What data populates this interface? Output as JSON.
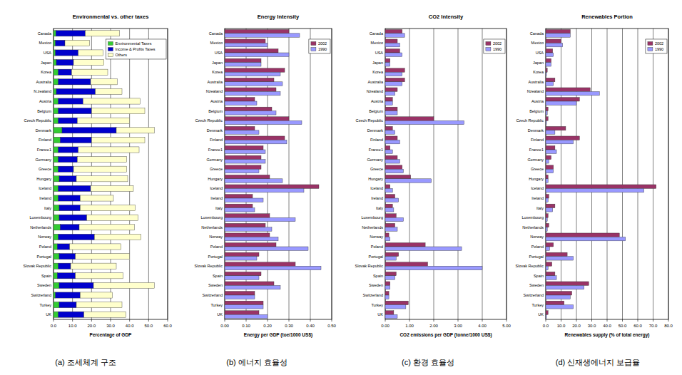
{
  "chart_data": [
    {
      "type": "bar",
      "orientation": "horizontal",
      "stacked": true,
      "grid": true,
      "legend": "upper right",
      "title": "Environmental vs. other taxes",
      "x_label": "Percentage of GDP",
      "caption": "(a) 조세체계 구조",
      "categories": [
        "Canada",
        "Mexico",
        "USA",
        "Japan",
        "Korea",
        "Australia",
        "N.zealand",
        "Austria",
        "Belgium",
        "Czech Republic",
        "Denmark",
        "Finland",
        "France1",
        "Germany",
        "Greece",
        "Hungary",
        "Iceland",
        "Ireland",
        "Italy",
        "Luxembourg",
        "Netherlands",
        "Norway",
        "Poland",
        "Portugal",
        "Slovak Republic",
        "Spain",
        "Sweden",
        "Switzerland",
        "Turkey",
        "UK"
      ],
      "series": [
        {
          "name": "Environmental Taxes",
          "color": "#33cc33",
          "values": [
            1.2,
            1.0,
            1.0,
            1.5,
            2.5,
            2.5,
            1.5,
            2.5,
            2.5,
            2.5,
            4.5,
            3.5,
            2.5,
            2.5,
            2.5,
            3,
            2.5,
            2.5,
            3,
            3,
            3.5,
            2.5,
            2,
            3,
            2.5,
            2,
            3,
            1,
            3,
            2.5
          ]
        },
        {
          "name": "Income & Profits Taxes",
          "color": "#0000cc",
          "values": [
            15.5,
            5,
            12,
            9,
            7,
            17,
            20.5,
            13,
            17.5,
            10,
            28.5,
            16.5,
            10.5,
            10,
            8,
            9,
            17,
            11.5,
            11,
            14.5,
            10,
            19,
            6.5,
            8.5,
            6.5,
            9.5,
            18,
            13,
            9,
            13.5
          ]
        },
        {
          "name": "Others",
          "color": "#ffffcc",
          "values": [
            18,
            13,
            13,
            16,
            19,
            14,
            14,
            30,
            28,
            27.5,
            20,
            28,
            32,
            26,
            28,
            27,
            22.5,
            17.5,
            29,
            27,
            29,
            24.5,
            27,
            28.5,
            24,
            25,
            32,
            17,
            24,
            22
          ]
        }
      ],
      "xlim": [
        0,
        60
      ],
      "xticks": [
        {
          "value": 0,
          "label": "0.0"
        },
        {
          "value": 10,
          "label": "10.0"
        },
        {
          "value": 20,
          "label": "20.0"
        },
        {
          "value": 30,
          "label": "30.0"
        },
        {
          "value": 40,
          "label": "40.0"
        },
        {
          "value": 50,
          "label": "50.0"
        },
        {
          "value": 60,
          "label": "60.0"
        }
      ]
    },
    {
      "type": "bar",
      "orientation": "horizontal",
      "grid": true,
      "legend": "upper right",
      "title": "Energy Intensity",
      "x_label": "Energy per GDP (toe/1000 US$)",
      "caption": "(b) 에너지 효율성",
      "categories": [
        "Canada",
        "Mexico",
        "USA",
        "Japan",
        "Korea",
        "Australia",
        "Nzealand",
        "Austria",
        "Belgium",
        "Czech Republic",
        "Denmark",
        "Finland",
        "France1",
        "Germany",
        "Greece",
        "Hungary",
        "Iceland",
        "Ireland",
        "Italy",
        "Luxembourg",
        "Netherlands",
        "Norway",
        "Poland",
        "Portugal",
        "Slovak Republic",
        "Spain",
        "Sweden",
        "Switzerland",
        "Turkey",
        "UK"
      ],
      "series": [
        {
          "name": "2002",
          "color": "#993366",
          "values": [
            0.3,
            0.19,
            0.25,
            0.17,
            0.28,
            0.23,
            0.24,
            0.14,
            0.22,
            0.3,
            0.14,
            0.28,
            0.18,
            0.17,
            0.17,
            0.21,
            0.44,
            0.13,
            0.13,
            0.21,
            0.19,
            0.21,
            0.24,
            0.16,
            0.33,
            0.17,
            0.23,
            0.14,
            0.18,
            0.16
          ]
        },
        {
          "name": "1990",
          "color": "#9999ff",
          "values": [
            0.35,
            0.2,
            0.3,
            0.17,
            0.26,
            0.27,
            0.26,
            0.15,
            0.24,
            0.36,
            0.16,
            0.29,
            0.19,
            0.19,
            0.16,
            0.27,
            0.37,
            0.18,
            0.14,
            0.33,
            0.22,
            0.25,
            0.39,
            0.15,
            0.45,
            0.16,
            0.26,
            0.14,
            0.18,
            0.2
          ]
        }
      ],
      "xlim": [
        0,
        0.5
      ],
      "xticks": [
        {
          "value": 0,
          "label": "0.00"
        },
        {
          "value": 0.1,
          "label": "0.10"
        },
        {
          "value": 0.2,
          "label": "0.20"
        },
        {
          "value": 0.3,
          "label": "0.30"
        },
        {
          "value": 0.4,
          "label": "0.40"
        },
        {
          "value": 0.5,
          "label": "0.50"
        }
      ]
    },
    {
      "type": "bar",
      "orientation": "horizontal",
      "grid": true,
      "legend": "upper right",
      "title": "CO2 Intensity",
      "x_label": "CO2 emissions per GDP (tonne/1000 US$)",
      "caption": "(c) 환경 효율성",
      "categories": [
        "Canada",
        "Mexico",
        "USA",
        "Japan",
        "Korea",
        "Australia",
        "Nzealand",
        "Austria",
        "Belgium",
        "Czech Republic",
        "Denmark",
        "Finland",
        "France1",
        "Germany",
        "Greece",
        "Hungary",
        "Iceland",
        "Ireland",
        "Italy",
        "Luxembourg",
        "Netherlands",
        "Norway",
        "Poland",
        "Portugal",
        "Slovak Republic",
        "Spain",
        "Sweden",
        "Switzerland",
        "Turkey",
        "UK"
      ],
      "series": [
        {
          "name": "2002",
          "color": "#993366",
          "values": [
            0.7,
            0.5,
            0.6,
            0.2,
            0.8,
            0.8,
            0.5,
            0.3,
            0.5,
            2.0,
            0.3,
            0.5,
            0.2,
            0.5,
            0.7,
            1.05,
            0.2,
            0.4,
            0.3,
            0.45,
            0.4,
            0.15,
            1.65,
            0.55,
            1.75,
            0.45,
            0.2,
            0.15,
            0.95,
            0.35
          ]
        },
        {
          "name": "1990",
          "color": "#9999ff",
          "values": [
            0.8,
            0.6,
            0.7,
            0.2,
            0.7,
            0.7,
            0.4,
            0.3,
            0.5,
            3.25,
            0.4,
            0.6,
            0.3,
            0.6,
            0.75,
            1.9,
            0.3,
            0.55,
            0.35,
            0.75,
            0.5,
            0.2,
            3.15,
            0.45,
            4.0,
            0.4,
            0.2,
            0.15,
            0.85,
            0.5
          ]
        }
      ],
      "xlim": [
        0,
        5
      ],
      "xticks": [
        {
          "value": 0,
          "label": "0.00"
        },
        {
          "value": 1,
          "label": "1.00"
        },
        {
          "value": 2,
          "label": "2.00"
        },
        {
          "value": 3,
          "label": "3.00"
        },
        {
          "value": 4,
          "label": "4.00"
        },
        {
          "value": 5,
          "label": "5.00"
        }
      ]
    },
    {
      "type": "bar",
      "orientation": "horizontal",
      "grid": true,
      "legend": "upper right",
      "title": "Renewables Portion",
      "x_label": "Renewables supply (% of total energy)",
      "caption": "(d) 신재생에너지 보급율",
      "categories": [
        "Canada",
        "Mexico",
        "USA",
        "Japan",
        "Korea",
        "Australia",
        "Nzealand",
        "Austria",
        "Belgium",
        "Czech Republic",
        "Denmark",
        "Finland",
        "France1",
        "Germany",
        "Greece",
        "Hungary",
        "Iceland",
        "Ireland",
        "Italy",
        "Luxembourg",
        "Netherlands",
        "Norway",
        "Poland",
        "Portugal",
        "Slovak Republic",
        "Spain",
        "Sweden",
        "Switzerland",
        "Turkey",
        "UK"
      ],
      "series": [
        {
          "name": "2002",
          "color": "#993366",
          "values": [
            16,
            10,
            4.5,
            3.5,
            1,
            6,
            29,
            22,
            1.5,
            1.5,
            13,
            22,
            6,
            3.5,
            5,
            1.5,
            72,
            2,
            6,
            1.5,
            2,
            48,
            5,
            14,
            4,
            6,
            28,
            17,
            12,
            1.5
          ]
        },
        {
          "name": "1990",
          "color": "#9999ff",
          "values": [
            16,
            11,
            5,
            3.5,
            0.5,
            5,
            35,
            20,
            1,
            0.5,
            6,
            18,
            7,
            2,
            5,
            1.5,
            64,
            1.5,
            4.5,
            1,
            1,
            52,
            2.5,
            18,
            1.5,
            7,
            25,
            16,
            18,
            0.5
          ]
        }
      ],
      "xlim": [
        0,
        80
      ],
      "xticks": [
        {
          "value": 0,
          "label": "0.0"
        },
        {
          "value": 10,
          "label": "10.0"
        },
        {
          "value": 20,
          "label": "20.0"
        },
        {
          "value": 30,
          "label": "30.0"
        },
        {
          "value": 40,
          "label": "40.0"
        },
        {
          "value": 50,
          "label": "50.0"
        },
        {
          "value": 60,
          "label": "60.0"
        },
        {
          "value": 70,
          "label": "70.0"
        },
        {
          "value": 80,
          "label": "80.0"
        }
      ]
    }
  ]
}
